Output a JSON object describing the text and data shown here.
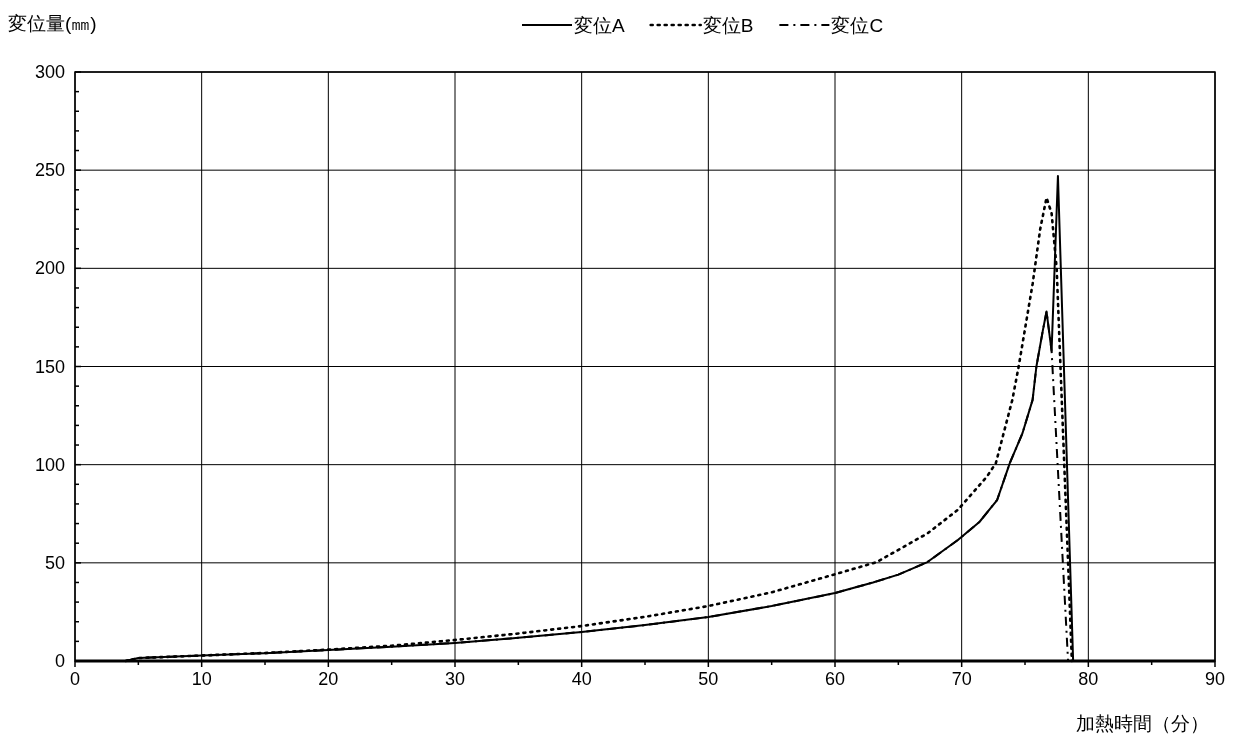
{
  "chart_data": {
    "type": "line",
    "ylabel": "変位量(㎜)",
    "xlabel": "加熱時間（分）",
    "xlim": [
      0,
      90
    ],
    "ylim": [
      0,
      300
    ],
    "xticks": [
      0,
      {
        "value": 5,
        "label": null
      },
      10,
      {
        "value": 15,
        "label": null
      },
      20,
      {
        "value": 25,
        "label": null
      },
      30,
      {
        "value": 35,
        "label": null
      },
      40,
      {
        "value": 45,
        "label": null
      },
      50,
      {
        "value": 55,
        "label": null
      },
      60,
      {
        "value": 65,
        "label": null
      },
      70,
      {
        "value": 75,
        "label": null
      },
      80,
      {
        "value": 85,
        "label": null
      },
      90
    ],
    "yticks": [
      0,
      {
        "value": 10,
        "label": null
      },
      {
        "value": 20,
        "label": null
      },
      {
        "value": 30,
        "label": null
      },
      {
        "value": 40,
        "label": null
      },
      50,
      {
        "value": 60,
        "label": null
      },
      {
        "value": 70,
        "label": null
      },
      {
        "value": 80,
        "label": null
      },
      {
        "value": 90,
        "label": null
      },
      100,
      {
        "value": 110,
        "label": null
      },
      {
        "value": 120,
        "label": null
      },
      {
        "value": 130,
        "label": null
      },
      {
        "value": 140,
        "label": null
      },
      150,
      {
        "value": 160,
        "label": null
      },
      {
        "value": 170,
        "label": null
      },
      {
        "value": 180,
        "label": null
      },
      {
        "value": 190,
        "label": null
      },
      200,
      {
        "value": 210,
        "label": null
      },
      {
        "value": 220,
        "label": null
      },
      {
        "value": 230,
        "label": null
      },
      {
        "value": 240,
        "label": null
      },
      250,
      {
        "value": 260,
        "label": null
      },
      {
        "value": 270,
        "label": null
      },
      {
        "value": 280,
        "label": null
      },
      {
        "value": 290,
        "label": null
      },
      300
    ],
    "grid": true,
    "legend": "top",
    "marker": "none",
    "series": [
      {
        "name": "変位A",
        "color": "#000000",
        "line_style": "solid",
        "x": [
          4,
          5,
          10,
          15,
          20,
          25,
          30,
          35,
          40,
          45,
          50,
          55,
          60,
          63,
          65,
          67.3,
          69.7,
          71.4,
          72.8,
          73.8,
          74.8,
          75.6,
          75.9,
          76.4,
          76.7,
          77.1,
          77.6,
          78.8
        ],
        "values": [
          0,
          1.5,
          2.8,
          4,
          5.6,
          7.3,
          9.2,
          11.8,
          14.8,
          18.3,
          22.4,
          28,
          34.6,
          40,
          44,
          50.4,
          61.6,
          70.8,
          82,
          100.8,
          116,
          133,
          150,
          168,
          178,
          158,
          247,
          0
        ]
      },
      {
        "name": "変位B",
        "color": "#000000",
        "line_style": "dotted",
        "x": [
          4,
          5,
          10,
          15,
          20,
          25,
          30,
          35,
          40,
          45,
          50,
          55,
          59.8,
          63.3,
          67.3,
          69.7,
          72,
          72.7,
          74,
          74.5,
          75.6,
          76.2,
          76.7,
          77.1,
          77.5,
          78.7
        ],
        "values": [
          0,
          1.5,
          2.8,
          4.1,
          5.8,
          7.8,
          10.7,
          14,
          17.8,
          22.5,
          28,
          35,
          43.8,
          50.4,
          65,
          77,
          94,
          100.8,
          133,
          150,
          192,
          220,
          236,
          228,
          200,
          0
        ]
      },
      {
        "name": "変位C",
        "color": "#000000",
        "line_style": "dashdot",
        "x": [
          4,
          5,
          10,
          15,
          20,
          25,
          30,
          35,
          40,
          45,
          50,
          55,
          60,
          63,
          65,
          67.3,
          69.7,
          71.4,
          72.8,
          73.8,
          74.8,
          75.6,
          75.9,
          76.4,
          76.7,
          77.1,
          78.4
        ],
        "values": [
          0,
          1.5,
          2.8,
          4,
          5.6,
          7.3,
          9.2,
          11.8,
          14.8,
          18.3,
          22.4,
          28,
          34.6,
          40,
          44,
          50.4,
          61.6,
          70.8,
          82,
          100.8,
          116,
          133,
          150,
          168,
          178,
          158,
          0
        ]
      }
    ]
  }
}
